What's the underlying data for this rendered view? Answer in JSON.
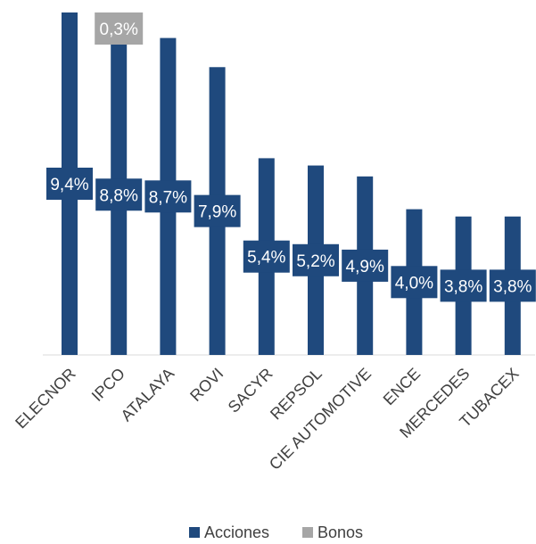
{
  "chart_data": {
    "type": "bar",
    "stacked": true,
    "categories": [
      "ELECNOR",
      "IPCO",
      "ATALAYA",
      "ROVI",
      "SACYR",
      "REPSOL",
      "CIE AUTOMOTIVE",
      "ENCE",
      "MERCEDES",
      "TUBACEX"
    ],
    "series": [
      {
        "name": "Acciones",
        "color": "#1f497d",
        "values": [
          9.4,
          8.8,
          8.7,
          7.9,
          5.4,
          5.2,
          4.9,
          4.0,
          3.8,
          3.8
        ],
        "labels": [
          "9,4%",
          "8,8%",
          "8,7%",
          "7,9%",
          "5,4%",
          "5,2%",
          "4,9%",
          "4,0%",
          "3,8%",
          "3,8%"
        ]
      },
      {
        "name": "Bonos",
        "color": "#a6a6a6",
        "values": [
          0,
          0.3,
          0,
          0,
          0,
          0,
          0,
          0,
          0,
          0
        ],
        "labels": [
          "",
          "0,3%",
          "",
          "",
          "",
          "",
          "",
          "",
          "",
          ""
        ]
      }
    ],
    "ylim": [
      0,
      9.4
    ],
    "grid": false,
    "legend": "bottom"
  }
}
